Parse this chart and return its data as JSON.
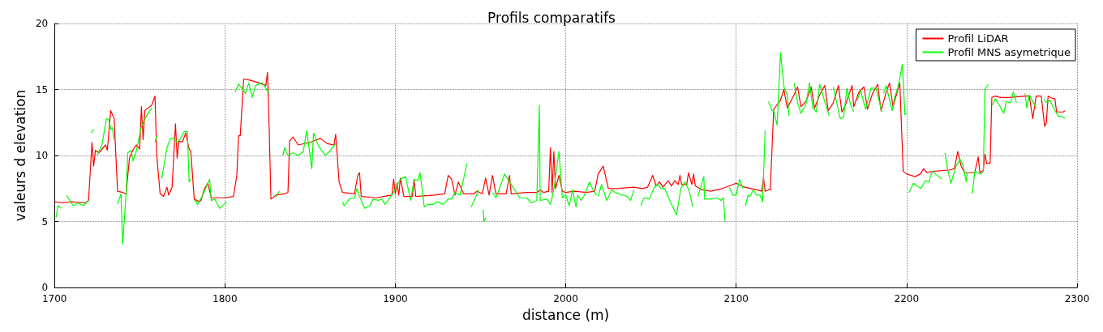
{
  "chart_data": {
    "type": "line",
    "title": "Profils comparatifs",
    "xlabel": "distance (m)",
    "ylabel": "valeurs d elevation",
    "xlim": [
      1700,
      2300
    ],
    "xticks": [
      1700,
      1800,
      1900,
      2000,
      2100,
      2200,
      2300
    ],
    "ylim": [
      0,
      20
    ],
    "yticks": [
      0,
      5,
      10,
      15,
      20
    ],
    "grid": true,
    "legend": "top right",
    "line_style": "solid",
    "marker": "none",
    "series": [
      {
        "name": "Profil LiDAR",
        "color": "#ff0000",
        "x": [
          1700,
          1705,
          1710,
          1718,
          1720,
          1722,
          1723,
          1724,
          1726,
          1730,
          1731,
          1733,
          1735,
          1737,
          1740,
          1742,
          1744,
          1746,
          1748,
          1750,
          1751,
          1752,
          1753,
          1757,
          1759,
          1760,
          1762,
          1764,
          1766,
          1767,
          1769,
          1771,
          1772,
          1773,
          1775,
          1777,
          1779,
          1780,
          1782,
          1785,
          1786,
          1788,
          1790,
          1792,
          1800,
          1805,
          1807,
          1808,
          1809,
          1811,
          1815,
          1820,
          1824,
          1825,
          1826,
          1827,
          1830,
          1835,
          1837,
          1838,
          1840,
          1843,
          1850,
          1856,
          1860,
          1864,
          1865,
          1867,
          1869,
          1876,
          1878,
          1879,
          1880,
          1889,
          1893,
          1898,
          1899,
          1900,
          1901,
          1902,
          1903,
          1905,
          1910,
          1911,
          1912,
          1923,
          1929,
          1931,
          1933,
          1935,
          1937,
          1938,
          1940,
          1946,
          1948,
          1951,
          1953,
          1955,
          1957,
          1959,
          1965,
          1967,
          1968,
          1977,
          1980,
          1983,
          1985,
          1987,
          1990,
          1991,
          1992,
          1993,
          1994,
          1996,
          1998,
          2000,
          2005,
          2012,
          2017,
          2019,
          2022,
          2025,
          2030,
          2040,
          2045,
          2048,
          2051,
          2053,
          2055,
          2057,
          2060,
          2062,
          2064,
          2066,
          2067,
          2068,
          2071,
          2072,
          2074,
          2075,
          2076,
          2080,
          2085,
          2092,
          2100,
          2105,
          2112,
          2115,
          2116,
          2117,
          2119,
          2120,
          2122,
          2126,
          2128,
          2130,
          2134,
          2136,
          2138,
          2141,
          2144,
          2146,
          2149,
          2152,
          2154,
          2157,
          2160,
          2162,
          2164,
          2168,
          2169,
          2172,
          2175,
          2177,
          2180,
          2183,
          2185,
          2188,
          2190,
          2192,
          2196,
          2198,
          2200,
          2205,
          2208,
          2210,
          2212,
          2215,
          2225,
          2228,
          2230,
          2232,
          2234,
          2240,
          2242,
          2243,
          2245,
          2246,
          2247,
          2249,
          2250,
          2252,
          2255,
          2260,
          2270,
          2272,
          2274,
          2276,
          2279,
          2281,
          2282,
          2283,
          2286,
          2287,
          2288,
          2292,
          2293
        ],
        "values": [
          6.5,
          6.4,
          6.5,
          6.4,
          6.6,
          11.0,
          9.2,
          10.4,
          10.2,
          10.8,
          10.4,
          13.4,
          12.8,
          7.3,
          7.2,
          7.1,
          9.8,
          10.4,
          10.8,
          10.5,
          13.7,
          11.2,
          13.4,
          13.8,
          14.5,
          10.0,
          7.1,
          6.9,
          7.6,
          7.0,
          7.6,
          12.4,
          9.8,
          11.1,
          11.0,
          11.7,
          10.5,
          10.3,
          6.7,
          6.5,
          6.6,
          7.5,
          7.9,
          6.8,
          6.8,
          6.9,
          8.5,
          11.5,
          11.5,
          15.8,
          15.7,
          15.5,
          15.3,
          16.3,
          12.0,
          6.7,
          7.0,
          7.1,
          7.2,
          11.1,
          11.4,
          10.8,
          11.0,
          11.3,
          10.9,
          10.8,
          11.6,
          8.0,
          7.2,
          7.1,
          8.5,
          8.7,
          6.9,
          6.8,
          6.9,
          7.0,
          8.2,
          7.1,
          7.9,
          7.0,
          8.3,
          6.9,
          6.9,
          8.2,
          6.9,
          7.0,
          7.1,
          8.5,
          8.2,
          7.0,
          8.0,
          7.7,
          7.1,
          7.1,
          7.3,
          7.1,
          8.3,
          7.0,
          8.5,
          7.1,
          7.1,
          8.5,
          7.1,
          7.2,
          7.2,
          7.2,
          7.4,
          7.2,
          7.3,
          10.6,
          7.2,
          10.3,
          7.5,
          8.5,
          7.3,
          7.2,
          7.3,
          7.2,
          7.3,
          8.6,
          9.2,
          7.5,
          7.5,
          7.6,
          7.5,
          7.6,
          8.5,
          7.7,
          8.0,
          7.6,
          8.1,
          7.7,
          8.1,
          7.8,
          8.5,
          7.8,
          7.8,
          8.7,
          7.8,
          8.6,
          7.7,
          7.4,
          7.3,
          7.5,
          7.9,
          7.6,
          7.4,
          7.3,
          8.3,
          7.3,
          7.4,
          7.4,
          13.5,
          14.2,
          15.0,
          13.6,
          14.6,
          15.2,
          13.7,
          14.1,
          15.2,
          13.6,
          14.6,
          15.3,
          13.4,
          14.0,
          15.3,
          13.3,
          13.8,
          15.3,
          13.7,
          14.8,
          15.2,
          13.5,
          14.7,
          15.4,
          13.4,
          14.8,
          15.5,
          13.7,
          15.5,
          8.8,
          8.6,
          8.4,
          8.6,
          9.0,
          8.7,
          8.8,
          8.9,
          9.0,
          10.3,
          9.2,
          8.7,
          8.7,
          9.9,
          8.7,
          8.9,
          10.1,
          9.4,
          9.4,
          14.4,
          14.5,
          14.4,
          14.4,
          14.5,
          14.5,
          12.8,
          14.5,
          14.5,
          12.2,
          12.5,
          14.5,
          14.3,
          14.3,
          13.3,
          13.3,
          13.4
        ]
      },
      {
        "name": "Profil MNS asymetrique",
        "color": "#00ff00",
        "x": [
          1701,
          1702,
          1704,
          1705,
          1707,
          1711,
          1714,
          1717,
          1720,
          1721,
          1721.5,
          1723,
          1724,
          1725,
          1726,
          1728,
          1730.5,
          1732,
          1733,
          1734,
          1735,
          1736,
          1737,
          1739,
          1740,
          1742,
          1743,
          1745,
          1746,
          1748,
          1751,
          1754,
          1757,
          1758,
          1759,
          1760,
          1761,
          1762.5,
          1763,
          1766,
          1768,
          1770,
          1772,
          1774,
          1776,
          1778,
          1779,
          1780,
          1781,
          1782,
          1783,
          1784,
          1787,
          1791,
          1792,
          1794,
          1797,
          1801,
          1803,
          1806,
          1808,
          1810,
          1812,
          1814,
          1816,
          1818,
          1822,
          1826,
          1828,
          1830,
          1832,
          1833,
          1834,
          1835,
          1837,
          1840,
          1843,
          1846,
          1848,
          1851,
          1852,
          1855,
          1859,
          1862,
          1865,
          1867,
          1869,
          1870,
          1873,
          1876,
          1877.5,
          1879,
          1882,
          1885,
          1887,
          1890,
          1892,
          1894,
          1898,
          1903,
          1906,
          1909,
          1911,
          1913,
          1914.5,
          1917,
          1919,
          1922,
          1925,
          1928,
          1931,
          1933,
          1935,
          1938,
          1942,
          1943,
          1944.5,
          1947,
          1949,
          1950,
          1951.5,
          1952,
          1953,
          1955,
          1957,
          1959,
          1962,
          1964,
          1968,
          1971,
          1973,
          1977,
          1980,
          1983,
          1984.5,
          1985,
          1989,
          1991,
          1993,
          1996,
          1998,
          2000,
          2002,
          2004,
          2006,
          2007,
          2009,
          2011,
          2014,
          2016,
          2018,
          2018.5,
          2019,
          2021,
          2024,
          2027,
          2029,
          2031,
          2032.5,
          2034,
          2036,
          2038,
          2040,
          2042,
          2044,
          2046,
          2049,
          2051,
          2052,
          2054,
          2056,
          2058,
          2061,
          2065,
          2067.5,
          2070,
          2072.5,
          2074.5,
          2076,
          2077.5,
          2081,
          2081.5,
          2085,
          2089,
          2091,
          2092.5,
          2093.5,
          2095,
          2096,
          2098,
          2100,
          2102,
          2104,
          2105,
          2105.5,
          2107,
          2108,
          2110,
          2112,
          2114,
          2115.5,
          2117,
          2118,
          2119,
          2121,
          2122,
          2124,
          2126,
          2128,
          2130,
          2131,
          2132.5,
          2134,
          2136,
          2138,
          2141,
          2143,
          2145,
          2147,
          2149,
          2151,
          2154.5,
          2156,
          2157,
          2159,
          2161,
          2163,
          2165,
          2167,
          2169,
          2170,
          2171,
          2173,
          2176,
          2179,
          2182,
          2185.5,
          2186,
          2186.5,
          2188,
          2191.5,
          2193,
          2195,
          2197.5,
          2199,
          2200,
          2201,
          2201.5,
          2204,
          2206,
          2208.5,
          2211,
          2213,
          2215,
          2217,
          2219,
          2220.6,
          2221.5,
          2222.5,
          2224,
          2226,
          2229,
          2231.5,
          2233,
          2235,
          2235.5,
          2237,
          2238.5,
          2240,
          2241.5,
          2243.6,
          2245,
          2246,
          2248,
          2249,
          2250.5,
          2252,
          2254,
          2257,
          2258.5,
          2261,
          2262.5,
          2264.5,
          2267,
          2269.5,
          2270.5,
          2272,
          2276,
          2278,
          2280.7,
          2281.5,
          2282.5,
          2284,
          2287,
          2289,
          2292,
          2293
        ],
        "values": [
          5.3,
          6.2,
          6.0,
          null,
          7.0,
          6.2,
          6.4,
          6.2,
          6.6,
          null,
          11.7,
          12.0,
          null,
          10.0,
          10.3,
          10.9,
          12.8,
          12.7,
          12.0,
          12.1,
          11.2,
          null,
          6.3,
          7.1,
          3.3,
          7.0,
          10.2,
          10.4,
          9.6,
          10.3,
          12.2,
          13.0,
          13.6,
          null,
          11.0,
          11.5,
          null,
          8.4,
          8.3,
          10.6,
          11.3,
          11.3,
          11.0,
          11.3,
          11.8,
          11.8,
          8.0,
          8.2,
          null,
          6.6,
          6.5,
          6.3,
          7.0,
          8.2,
          6.6,
          6.7,
          6.0,
          6.5,
          null,
          14.8,
          15.4,
          15.1,
          14.7,
          15.5,
          14.4,
          15.3,
          15.5,
          14.7,
          null,
          6.9,
          7.3,
          null,
          10.0,
          10.6,
          10.0,
          10.2,
          10.0,
          10.3,
          11.9,
          9.0,
          11.7,
          10.7,
          10.0,
          10.4,
          10.9,
          null,
          6.5,
          6.2,
          6.7,
          6.8,
          7.5,
          6.9,
          6.0,
          6.2,
          6.7,
          6.6,
          6.7,
          6.3,
          7.0,
          8.2,
          8.4,
          6.6,
          8.2,
          8.1,
          8.7,
          6.1,
          6.3,
          6.3,
          6.5,
          6.3,
          6.7,
          6.7,
          7.2,
          7.0,
          9.4,
          null,
          6.1,
          6.8,
          7.4,
          null,
          5.9,
          5.0,
          5.3,
          null,
          7.2,
          6.8,
          7.8,
          8.6,
          7.8,
          7.2,
          6.8,
          6.8,
          6.4,
          6.6,
          13.8,
          6.6,
          6.7,
          6.3,
          7.4,
          10.3,
          6.8,
          7.0,
          6.2,
          7.4,
          6.1,
          7.0,
          6.6,
          7.0,
          8.0,
          7.4,
          7.0,
          null,
          6.9,
          7.8,
          6.6,
          7.4,
          7.2,
          7.1,
          7.0,
          7.0,
          6.9,
          6.6,
          7.4,
          null,
          6.2,
          6.8,
          6.7,
          7.3,
          7.6,
          7.8,
          7.5,
          7.5,
          6.6,
          5.5,
          7.5,
          8.0,
          7.3,
          6.1,
          null,
          6.9,
          8.4,
          6.7,
          6.7,
          6.8,
          6.6,
          6.8,
          5.0,
          null,
          7.6,
          7.0,
          7.0,
          8.2,
          7.5,
          null,
          6.2,
          7.0,
          6.9,
          7.4,
          7.0,
          7.0,
          6.5,
          11.9,
          null,
          14.1,
          13.4,
          13.4,
          12.3,
          17.8,
          15.2,
          14.6,
          13.0,
          null,
          15.5,
          14.0,
          13.2,
          13.9,
          15.5,
          13.6,
          13.3,
          15.4,
          14.5,
          13.0,
          null,
          15.2,
          14.0,
          12.8,
          12.9,
          15.1,
          13.9,
          13.3,
          null,
          14.2,
          14.9,
          13.5,
          15.1,
          15.1,
          13.3,
          null,
          14.7,
          15.3,
          13.4,
          14.4,
          15.2,
          16.9,
          13.1,
          13.2,
          null,
          7.2,
          7.9,
          7.7,
          7.5,
          8.1,
          8.0,
          8.8,
          8.6,
          8.4,
          8.2,
          null,
          10.2,
          9.0,
          7.9,
          9.2,
          9.7,
          9.3,
          8.0,
          8.7,
          null,
          7.1,
          8.8,
          8.7,
          8.6,
          8.8,
          15.0,
          15.4,
          null,
          13.8,
          14.3,
          13.9,
          13.2,
          14.1,
          14.0,
          14.8,
          14.0,
          null,
          14.7,
          13.6,
          14.6,
          13.6,
          null,
          14.3,
          14.1,
          14.0,
          14.2,
          13.4,
          13.0,
          12.9,
          12.8
        ]
      }
    ]
  }
}
